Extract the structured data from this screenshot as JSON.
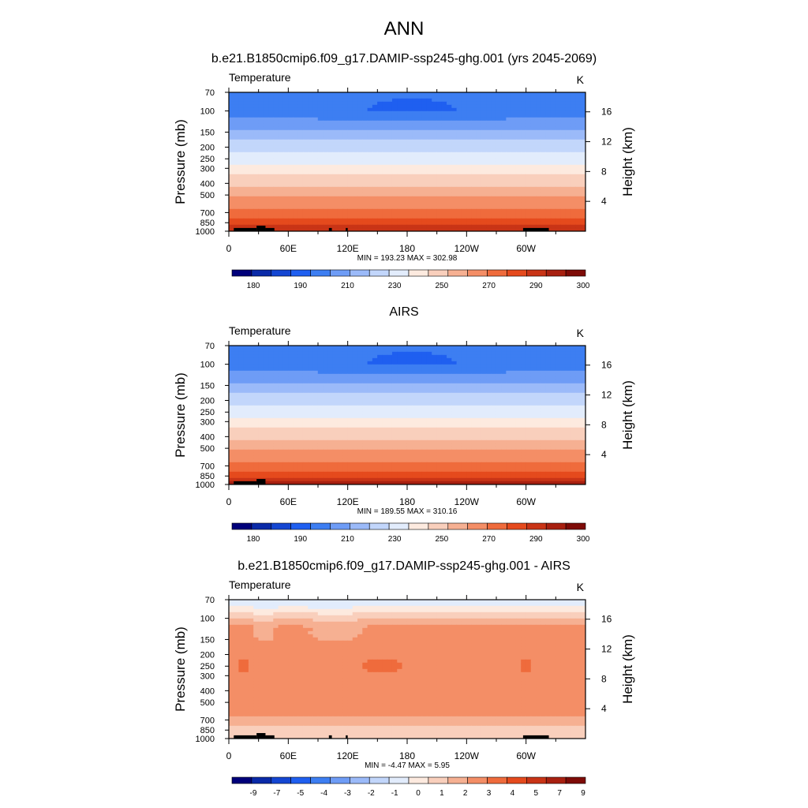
{
  "figure": {
    "title": "ANN"
  },
  "colors": {
    "abs_levels": [
      "#00007a",
      "#0a2aa8",
      "#1446d2",
      "#1f5ff0",
      "#3d7ef2",
      "#6e9cf6",
      "#9bbaf9",
      "#c2d6fb",
      "#e2ecfc",
      "#fdeadf",
      "#f9cfbc",
      "#f6b092",
      "#f48e66",
      "#ef6b3c",
      "#e54a1d",
      "#c93416",
      "#a82010",
      "#7e0b07"
    ],
    "diff_levels": [
      "#00007a",
      "#0a2aa8",
      "#1446d2",
      "#1f5ff0",
      "#3d7ef2",
      "#6e9cf6",
      "#9bbaf9",
      "#c2d6fb",
      "#e2ecfc",
      "#fdeadf",
      "#f9cfbc",
      "#f6b092",
      "#f48e66",
      "#ef6b3c",
      "#e54a1d",
      "#c93416",
      "#a82010",
      "#7e0b07"
    ],
    "land": "#000000"
  },
  "chart_data": [
    {
      "type": "heatmap",
      "title": "b.e21.B1850cmip6.f09_g17.DAMIP-ssp245-ghg.001 (yrs 2045-2069)",
      "variable": "Temperature",
      "units": "K",
      "ylabel": "Pressure (mb)",
      "ylabel_right": "Height (km)",
      "x_ticks": [
        "0",
        "60E",
        "120E",
        "180",
        "120W",
        "60W"
      ],
      "x_tick_lon": [
        0,
        60,
        120,
        180,
        240,
        300
      ],
      "x_range": [
        0,
        360
      ],
      "y_ticks": [
        "70",
        "100",
        "150",
        "200",
        "250",
        "300",
        "400",
        "500",
        "700",
        "850",
        "1000"
      ],
      "y_range_mb": [
        70,
        1000
      ],
      "height_ticks": [
        "16",
        "12",
        "8",
        "4"
      ],
      "stats": "MIN = 193.23  MAX = 302.98",
      "colorbar_labels": [
        "180",
        "190",
        "210",
        "230",
        "250",
        "270",
        "290",
        "300"
      ],
      "levels": [
        175,
        180,
        185,
        190,
        200,
        210,
        220,
        230,
        240,
        250,
        260,
        270,
        280,
        290,
        295,
        300,
        305
      ],
      "min": 193.23,
      "max": 302.98,
      "kind": "model"
    },
    {
      "type": "heatmap",
      "title": "AIRS",
      "variable": "Temperature",
      "units": "K",
      "ylabel": "Pressure (mb)",
      "ylabel_right": "Height (km)",
      "x_ticks": [
        "0",
        "60E",
        "120E",
        "180",
        "120W",
        "60W"
      ],
      "x_tick_lon": [
        0,
        60,
        120,
        180,
        240,
        300
      ],
      "x_range": [
        0,
        360
      ],
      "y_ticks": [
        "70",
        "100",
        "150",
        "200",
        "250",
        "300",
        "400",
        "500",
        "700",
        "850",
        "1000"
      ],
      "y_range_mb": [
        70,
        1000
      ],
      "height_ticks": [
        "16",
        "12",
        "8",
        "4"
      ],
      "stats": "MIN = 189.55  MAX = 310.16",
      "colorbar_labels": [
        "180",
        "190",
        "210",
        "230",
        "250",
        "270",
        "290",
        "300"
      ],
      "levels": [
        175,
        180,
        185,
        190,
        200,
        210,
        220,
        230,
        240,
        250,
        260,
        270,
        280,
        290,
        295,
        300,
        305
      ],
      "min": 189.55,
      "max": 310.16,
      "kind": "obs"
    },
    {
      "type": "heatmap",
      "title": "b.e21.B1850cmip6.f09_g17.DAMIP-ssp245-ghg.001 - AIRS",
      "variable": "Temperature",
      "units": "K",
      "ylabel": "Pressure (mb)",
      "ylabel_right": "Height (km)",
      "x_ticks": [
        "0",
        "60E",
        "120E",
        "180",
        "120W",
        "60W"
      ],
      "x_tick_lon": [
        0,
        60,
        120,
        180,
        240,
        300
      ],
      "x_range": [
        0,
        360
      ],
      "y_ticks": [
        "70",
        "100",
        "150",
        "200",
        "250",
        "300",
        "400",
        "500",
        "700",
        "850",
        "1000"
      ],
      "y_range_mb": [
        70,
        1000
      ],
      "height_ticks": [
        "16",
        "12",
        "8",
        "4"
      ],
      "stats": "MIN =  -4.47  MAX =   5.95",
      "colorbar_labels": [
        "-9",
        "-7",
        "-5",
        "-4",
        "-3",
        "-2",
        "-1",
        "0",
        "1",
        "2",
        "3",
        "4",
        "5",
        "7",
        "9"
      ],
      "levels": [
        -9,
        -7,
        -5,
        -4,
        -3,
        -2,
        -1,
        0,
        1,
        2,
        3,
        4,
        5,
        7,
        9
      ],
      "min": -4.47,
      "max": 5.95,
      "kind": "diff"
    }
  ]
}
